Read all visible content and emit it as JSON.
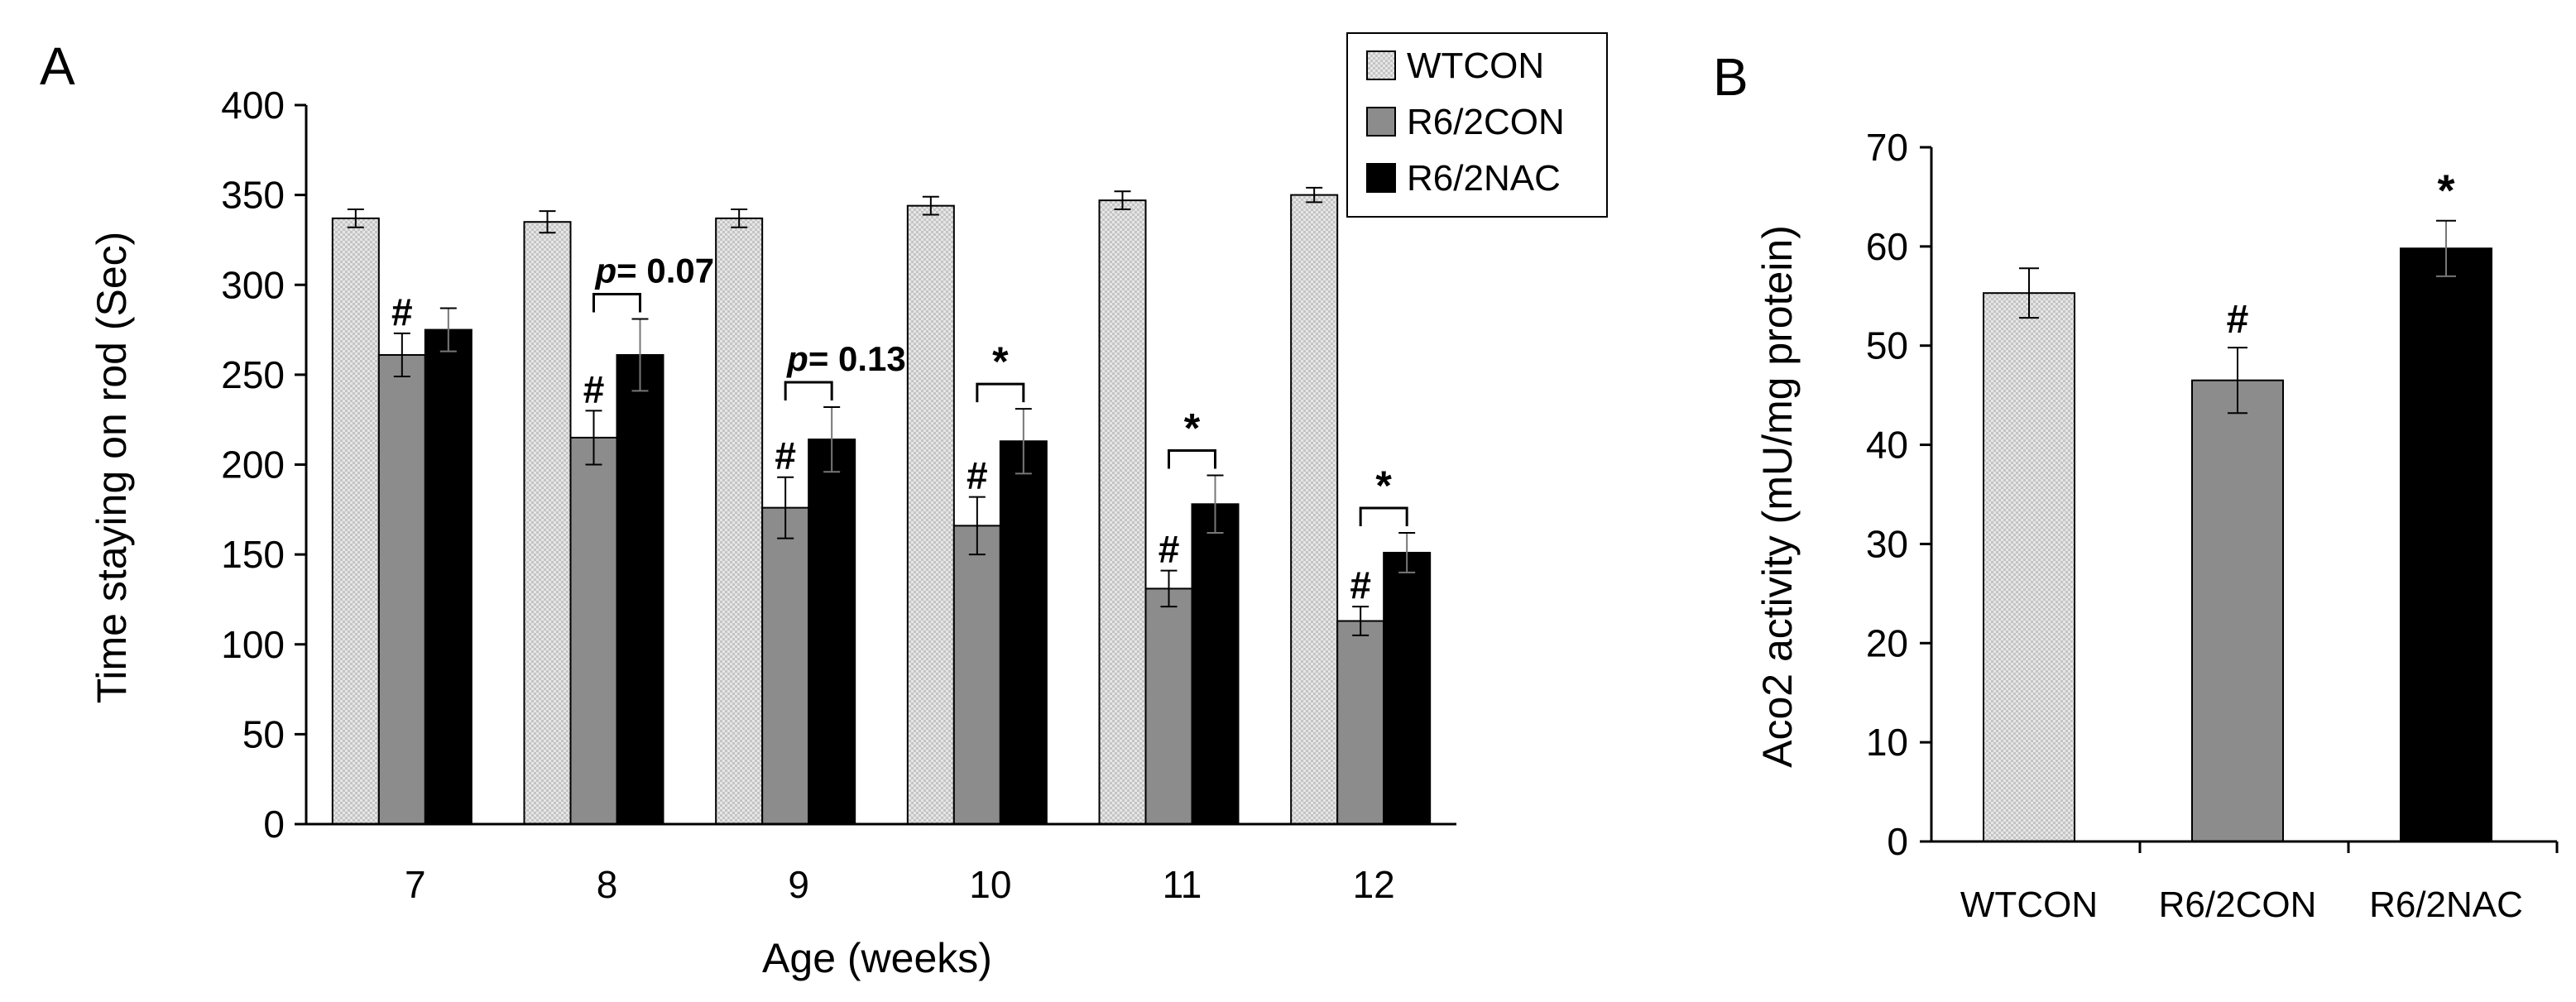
{
  "chart_data": [
    {
      "panel_label": "A",
      "type": "bar",
      "xlabel": "Age (weeks)",
      "ylabel": "Time staying on rod (Sec)",
      "ylim": [
        0,
        400
      ],
      "yticks": [
        0,
        50,
        100,
        150,
        200,
        250,
        300,
        350,
        400
      ],
      "categories": [
        "7",
        "8",
        "9",
        "10",
        "11",
        "12"
      ],
      "legend_position": "top-right",
      "series": [
        {
          "name": "WTCON",
          "color": "#dcdcdc",
          "pattern": "dotted",
          "values": [
            337,
            335,
            337,
            344,
            347,
            350
          ],
          "errors": [
            5,
            6,
            5,
            5,
            5,
            4
          ]
        },
        {
          "name": "R6/2CON",
          "color": "#8c8c8c",
          "values": [
            261,
            215,
            176,
            166,
            131,
            113
          ],
          "errors": [
            12,
            15,
            17,
            16,
            10,
            8
          ]
        },
        {
          "name": "R6/2NAC",
          "color": "#000000",
          "values": [
            275,
            261,
            214,
            213,
            178,
            151
          ],
          "errors": [
            12,
            20,
            18,
            18,
            16,
            11
          ]
        }
      ],
      "annotations": [
        {
          "category": "7",
          "type": "mark",
          "series": "R6/2CON",
          "text": "#"
        },
        {
          "category": "8",
          "type": "mark",
          "series": "R6/2CON",
          "text": "#"
        },
        {
          "category": "9",
          "type": "mark",
          "series": "R6/2CON",
          "text": "#"
        },
        {
          "category": "10",
          "type": "mark",
          "series": "R6/2CON",
          "text": "#"
        },
        {
          "category": "11",
          "type": "mark",
          "series": "R6/2CON",
          "text": "#"
        },
        {
          "category": "12",
          "type": "mark",
          "series": "R6/2CON",
          "text": "#"
        },
        {
          "category": "8",
          "type": "bracket",
          "text_italic": "p",
          "text": "= 0.07"
        },
        {
          "category": "9",
          "type": "bracket",
          "text_italic": "p",
          "text": "= 0.13"
        },
        {
          "category": "10",
          "type": "bracket",
          "text": "*"
        },
        {
          "category": "11",
          "type": "bracket",
          "text": "*"
        },
        {
          "category": "12",
          "type": "bracket",
          "text": "*"
        }
      ]
    },
    {
      "panel_label": "B",
      "type": "bar",
      "xlabel": "",
      "ylabel": "Aco2 activity (mU/mg protein)",
      "ylim": [
        0,
        70
      ],
      "yticks": [
        0,
        10,
        20,
        30,
        40,
        50,
        60,
        70
      ],
      "categories": [
        "WTCON",
        "R6/2CON",
        "R6/2NAC"
      ],
      "values": [
        55.3,
        46.5,
        59.8
      ],
      "errors": [
        2.5,
        3.3,
        2.8
      ],
      "colors": [
        "#dcdcdc",
        "#8c8c8c",
        "#000000"
      ],
      "annotations": [
        {
          "category": "R6/2CON",
          "text": "#"
        },
        {
          "category": "R6/2NAC",
          "text": "*"
        }
      ]
    }
  ]
}
